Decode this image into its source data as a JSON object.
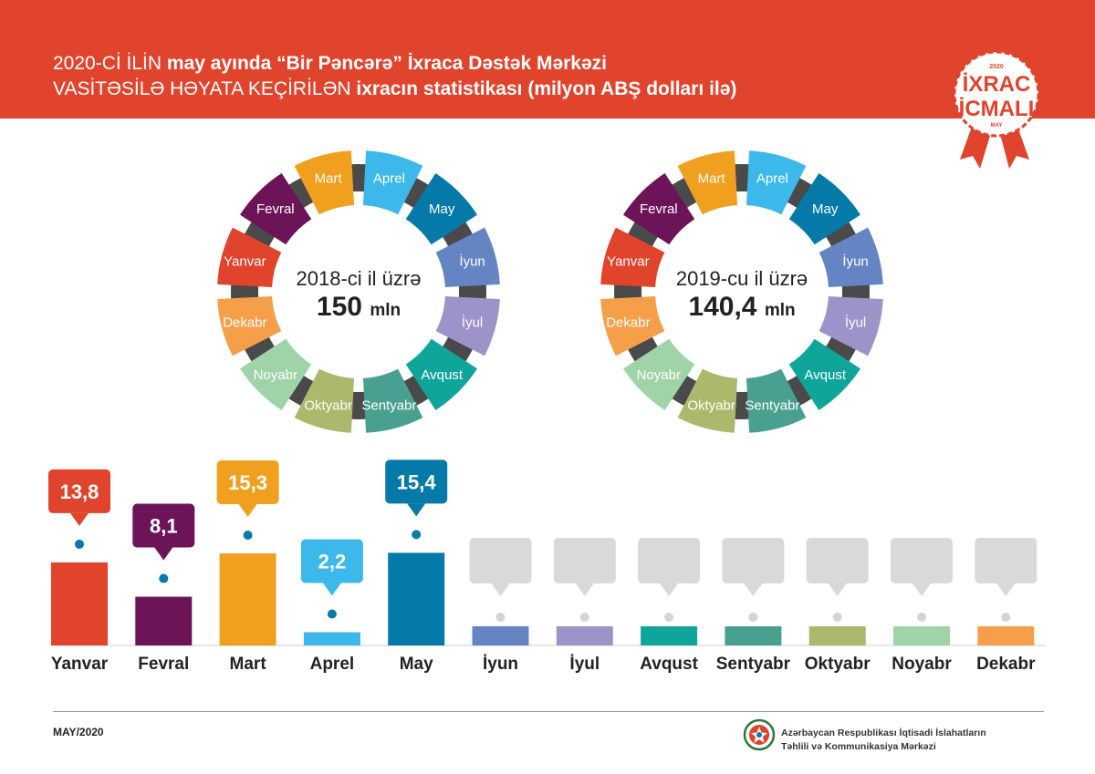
{
  "header": {
    "line1_part1": "2020-Cİ İLİN ",
    "line1_bold": "may ayında “Bir Pəncərə” İxraca Dəstək Mərkəzi",
    "line2_part1": "VASİTƏSİLƏ HƏYATA KEÇİRİLƏN ",
    "line2_bold": "ixracın statistikası (milyon ABŞ dolları ilə)"
  },
  "badge": {
    "year": "2020",
    "line1": "İXRAC",
    "line2": "İCMALI",
    "month": "MAY",
    "color": "#e0442c"
  },
  "months": [
    "Yanvar",
    "Fevral",
    "Mart",
    "Aprel",
    "May",
    "İyun",
    "İyul",
    "Avqust",
    "Sentyabr",
    "Oktyabr",
    "Noyabr",
    "Dekabr"
  ],
  "month_colors": [
    "#e0442c",
    "#6d1357",
    "#f0a01e",
    "#3db8ea",
    "#0579a8",
    "#6484c4",
    "#9d93c8",
    "#0fa59b",
    "#4aa090",
    "#abb96c",
    "#9fd4a8",
    "#f59f4a"
  ],
  "donut_month_colors": [
    "#e0442c",
    "#6d1357",
    "#f0a01e",
    "#3db8ea",
    "#0579a8",
    "#6484c4",
    "#9d93c8",
    "#0fa59b",
    "#4aa090",
    "#abb96c",
    "#9fd4a8",
    "#f59f4a"
  ],
  "donut_2018": {
    "title": "2018-ci il üzrə",
    "value": "150",
    "unit": "mln"
  },
  "donut_2019": {
    "title": "2019-cu il üzrə",
    "value": "140,4",
    "unit": "mln"
  },
  "chart_data": {
    "type": "bar",
    "title": "2020-ci ilin may ayında “Bir Pəncərə” İxraca Dəstək Mərkəzi vasitəsilə həyata keçirilən ixracın statistikası (milyon ABŞ dolları ilə)",
    "categories": [
      "Yanvar",
      "Fevral",
      "Mart",
      "Aprel",
      "May",
      "İyun",
      "İyul",
      "Avqust",
      "Sentyabr",
      "Oktyabr",
      "Noyabr",
      "Dekabr"
    ],
    "values": [
      13.8,
      8.1,
      15.3,
      2.2,
      15.4,
      null,
      null,
      null,
      null,
      null,
      null,
      null
    ],
    "value_labels": [
      "13,8",
      "8,1",
      "15,3",
      "2,2",
      "15,4",
      "",
      "",
      "",
      "",
      "",
      "",
      ""
    ],
    "xlabel": "",
    "ylabel": "milyon ABŞ dolları",
    "ylim": [
      0,
      20
    ],
    "placeholder_color": "#d9d9d9"
  },
  "footer": {
    "date": "MAY/2020",
    "org_line1": "Azərbaycan Respublikası İqtisadi İslahatların",
    "org_line2": "Təhlili və Kommunikasiya Mərkəzi"
  }
}
